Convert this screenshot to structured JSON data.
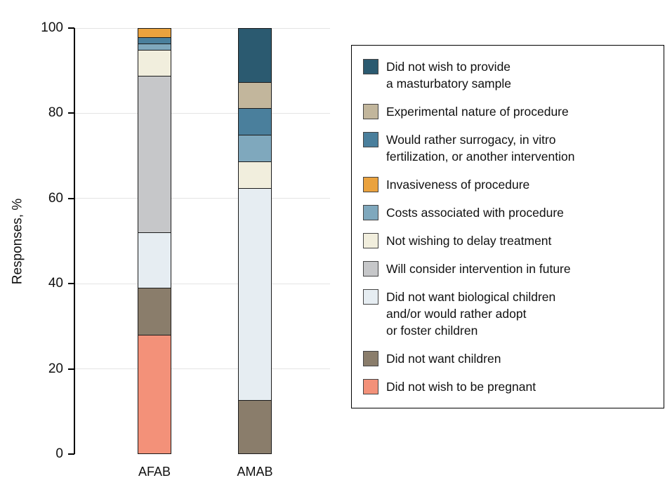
{
  "chart_data": {
    "type": "bar",
    "subtype": "stacked-vertical",
    "title": "",
    "ylabel": "Responses, %",
    "xlabel": "",
    "ylim": [
      0,
      100
    ],
    "yticks": [
      0,
      20,
      40,
      60,
      80,
      100
    ],
    "grid": "horizontal-light",
    "legend_position": "right-boxed",
    "categories": [
      "AFAB",
      "AMAB"
    ],
    "legend": [
      {
        "key": "masturbatory",
        "label": "Did not wish to provide\na masturbatory sample",
        "color": "#2b5a70"
      },
      {
        "key": "experimental",
        "label": "Experimental nature of procedure",
        "color": "#c2b69c"
      },
      {
        "key": "surrogacy",
        "label": "Would rather surrogacy, in vitro\nfertilization, or another intervention",
        "color": "#4a7f9c"
      },
      {
        "key": "invasiveness",
        "label": "Invasiveness of procedure",
        "color": "#eaa23e"
      },
      {
        "key": "costs",
        "label": "Costs associated with procedure",
        "color": "#7fa8bd"
      },
      {
        "key": "delay",
        "label": "Not wishing to delay treatment",
        "color": "#f1eedd"
      },
      {
        "key": "future",
        "label": "Will consider intervention in future",
        "color": "#c6c7c9"
      },
      {
        "key": "biological",
        "label": "Did not want biological children\nand/or would rather adopt\nor foster children",
        "color": "#e6edf2"
      },
      {
        "key": "children",
        "label": "Did not want children",
        "color": "#8a7d6b"
      },
      {
        "key": "pregnant",
        "label": "Did not wish to be pregnant",
        "color": "#f39179"
      }
    ],
    "bars": [
      {
        "category": "AFAB",
        "segments_bottom_to_top": [
          {
            "key": "pregnant",
            "value": 28
          },
          {
            "key": "children",
            "value": 11
          },
          {
            "key": "biological",
            "value": 13
          },
          {
            "key": "future",
            "value": 37
          },
          {
            "key": "delay",
            "value": 6
          },
          {
            "key": "costs",
            "value": 1.5
          },
          {
            "key": "surrogacy",
            "value": 1.5
          },
          {
            "key": "invasiveness",
            "value": 2
          }
        ]
      },
      {
        "category": "AMAB",
        "segments_bottom_to_top": [
          {
            "key": "children",
            "value": 12.5
          },
          {
            "key": "biological",
            "value": 50
          },
          {
            "key": "delay",
            "value": 6.25
          },
          {
            "key": "costs",
            "value": 6.25
          },
          {
            "key": "surrogacy",
            "value": 6.25
          },
          {
            "key": "experimental",
            "value": 6.25
          },
          {
            "key": "masturbatory",
            "value": 12.5
          }
        ]
      }
    ]
  }
}
